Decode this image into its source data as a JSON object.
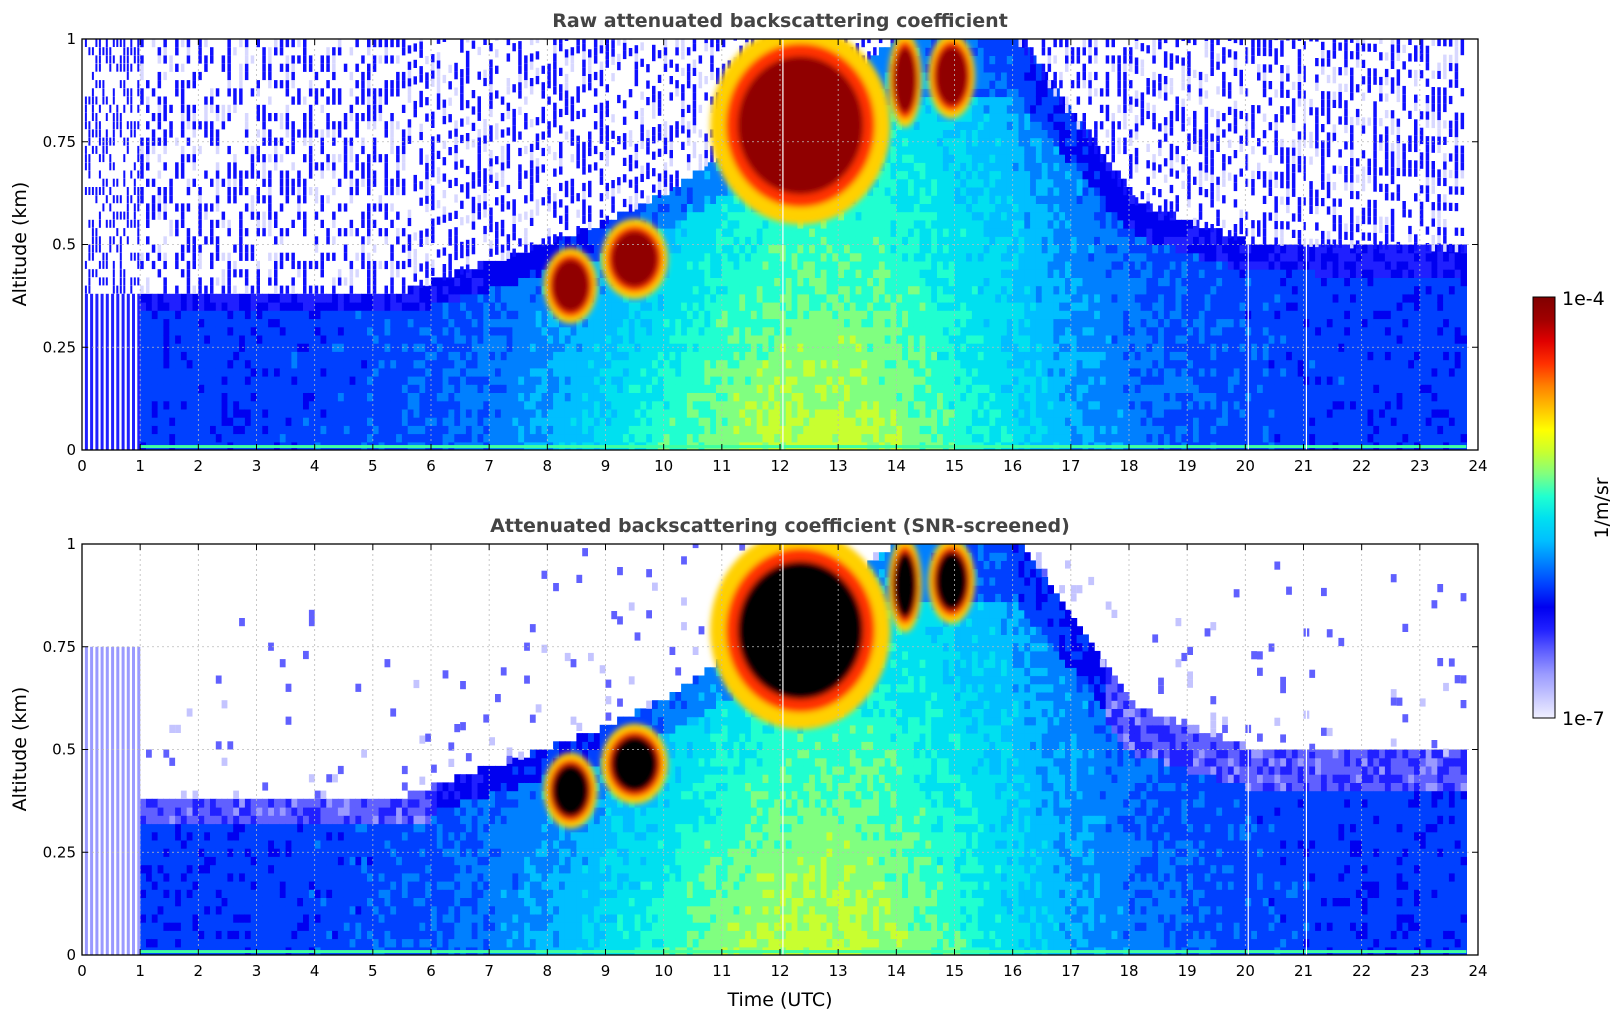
{
  "chart_data": [
    {
      "type": "heatmap",
      "title": "Raw attenuated backscattering coefficient",
      "xlabel": "",
      "ylabel": "Altitude (km)",
      "xlim": [
        0,
        24
      ],
      "ylim": [
        0,
        1
      ],
      "x_ticks": [
        "0",
        "1",
        "2",
        "3",
        "4",
        "5",
        "6",
        "7",
        "8",
        "9",
        "10",
        "11",
        "12",
        "13",
        "14",
        "15",
        "16",
        "17",
        "18",
        "19",
        "20",
        "21",
        "22",
        "23",
        "24"
      ],
      "y_ticks": [
        "0",
        "0.25",
        "0.5",
        "0.75",
        "1"
      ],
      "grid": true,
      "color_scale": "jet, logarithmic",
      "features": {
        "boundary_layer_top_km": [
          {
            "time": 1,
            "alt": 0.38
          },
          {
            "time": 5,
            "alt": 0.38
          },
          {
            "time": 5.5,
            "alt": 0.38
          },
          {
            "time": 7,
            "alt": 0.45
          },
          {
            "time": 8,
            "alt": 0.5
          },
          {
            "time": 9,
            "alt": 0.55
          },
          {
            "time": 10,
            "alt": 0.62
          },
          {
            "time": 11,
            "alt": 0.72
          },
          {
            "time": 12,
            "alt": 0.8
          },
          {
            "time": 13,
            "alt": 0.9
          },
          {
            "time": 14,
            "alt": 1.0
          },
          {
            "time": 16,
            "alt": 1.0
          },
          {
            "time": 17,
            "alt": 0.8
          },
          {
            "time": 18,
            "alt": 0.6
          },
          {
            "time": 20,
            "alt": 0.5
          },
          {
            "time": 23.8,
            "alt": 0.48
          }
        ],
        "high_backscatter_cells": [
          {
            "t0": 8.0,
            "t1": 8.8,
            "a0": 0.32,
            "a1": 0.48
          },
          {
            "t0": 9.0,
            "t1": 10.0,
            "a0": 0.38,
            "a1": 0.55
          },
          {
            "t0": 11.0,
            "t1": 13.7,
            "a0": 0.58,
            "a1": 1.0
          },
          {
            "t0": 13.9,
            "t1": 14.4,
            "a0": 0.8,
            "a1": 1.0
          },
          {
            "t0": 14.6,
            "t1": 15.3,
            "a0": 0.82,
            "a1": 1.0
          }
        ]
      }
    },
    {
      "type": "heatmap",
      "title": "Attenuated backscattering coefficient (SNR-screened)",
      "xlabel": "Time (UTC)",
      "ylabel": "Altitude (km)",
      "xlim": [
        0,
        24
      ],
      "ylim": [
        0,
        1
      ],
      "x_ticks": [
        "0",
        "1",
        "2",
        "3",
        "4",
        "5",
        "6",
        "7",
        "8",
        "9",
        "10",
        "11",
        "12",
        "13",
        "14",
        "15",
        "16",
        "17",
        "18",
        "19",
        "20",
        "21",
        "22",
        "23",
        "24"
      ],
      "y_ticks": [
        "0",
        "0.25",
        "0.5",
        "0.75",
        "1"
      ],
      "grid": true,
      "color_scale": "jet, logarithmic; saturated values shown black; low-SNR pixels removed"
    }
  ],
  "colorbar": {
    "label": "1/m/sr",
    "max_label": "1e-4",
    "min_label": "1e-7",
    "colors": [
      "#f0f0ff",
      "#c4c4ff",
      "#9a9aff",
      "#6060ff",
      "#2020ff",
      "#0000f0",
      "#0040ff",
      "#0080ff",
      "#00bfff",
      "#00e0f0",
      "#20ffd0",
      "#80ff80",
      "#c8ff30",
      "#ffff00",
      "#ffc000",
      "#ff8000",
      "#ff3000",
      "#e00000",
      "#a00000",
      "#800000"
    ]
  }
}
